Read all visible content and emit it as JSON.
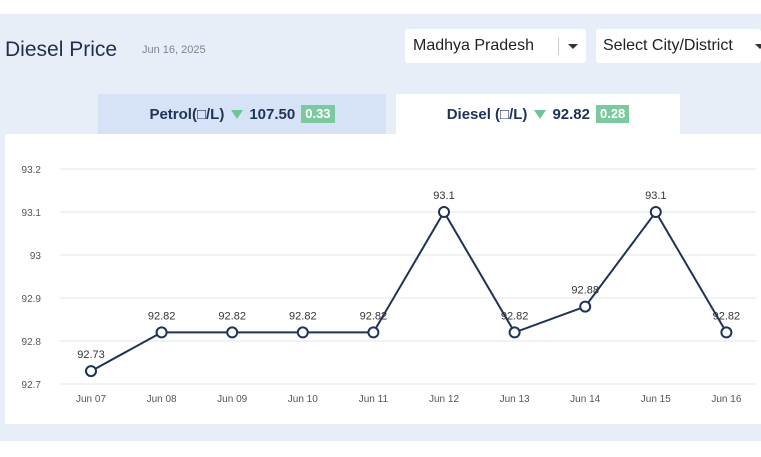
{
  "header": {
    "title": "Diesel Price",
    "date": "Jun 16, 2025",
    "state_select": "Madhya Pradesh",
    "city_select": "Select City/District"
  },
  "tabs": [
    {
      "label": "Petrol(□/L)",
      "price": "107.50",
      "change": "0.33",
      "trend": "down"
    },
    {
      "label": "Diesel (□/L)",
      "price": "92.82",
      "change": "0.28",
      "trend": "down"
    }
  ],
  "colors": {
    "accent": "#1e3357",
    "down": "#6cc59a",
    "badge": "#7cc9a0",
    "line": "#1e3357"
  },
  "chart_data": {
    "type": "line",
    "x": [
      "Jun 07",
      "Jun 08",
      "Jun 09",
      "Jun 10",
      "Jun 11",
      "Jun 12",
      "Jun 13",
      "Jun 14",
      "Jun 15",
      "Jun 16"
    ],
    "values": [
      92.73,
      92.82,
      92.82,
      92.82,
      92.82,
      93.1,
      92.82,
      92.88,
      93.1,
      92.82
    ],
    "data_labels": [
      "92.73",
      "92.82",
      "92.82",
      "92.82",
      "92.82",
      "93.1",
      "92.82",
      "92.88",
      "93.1",
      "92.82"
    ],
    "yticks": [
      "92.7",
      "92.8",
      "92.9",
      "93",
      "93.1",
      "93.2"
    ],
    "ytick_values": [
      92.7,
      92.8,
      92.9,
      93,
      93.1,
      93.2
    ],
    "ylim": [
      92.7,
      93.2
    ],
    "grid": true
  }
}
